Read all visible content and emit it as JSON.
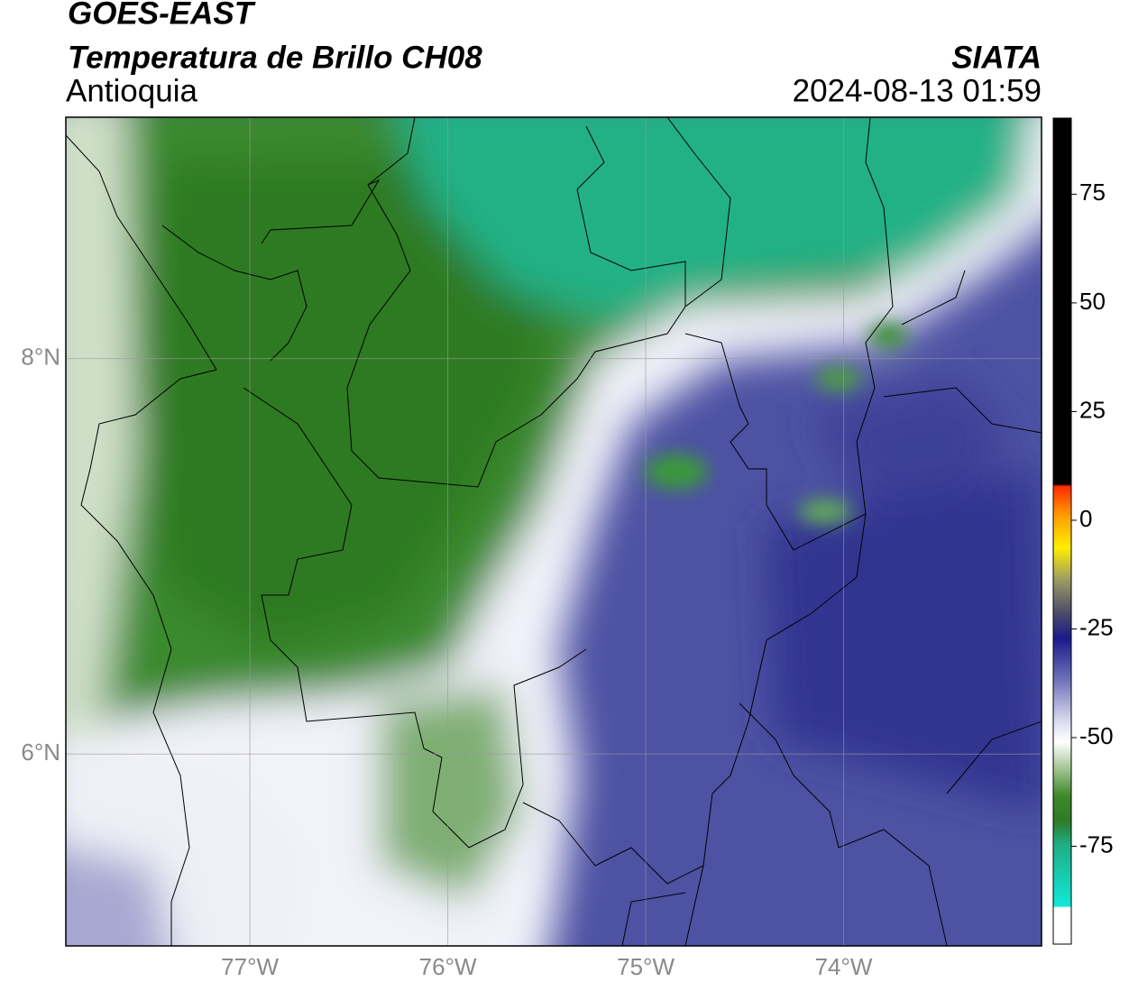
{
  "header": {
    "title": "GOES-EAST",
    "subtitle": "Temperatura de Brillo CH08",
    "region": "Antioquia",
    "source": "SIATA",
    "datetime": "2024-08-13 01:59"
  },
  "map": {
    "lon_range": [
      -77.93,
      -73.0
    ],
    "lat_range": [
      5.03,
      9.22
    ],
    "lon_ticks": [
      {
        "value": -77,
        "label": "77°W"
      },
      {
        "value": -76,
        "label": "76°W"
      },
      {
        "value": -75,
        "label": "75°W"
      },
      {
        "value": -74,
        "label": "74°W"
      }
    ],
    "lat_ticks": [
      {
        "value": 8,
        "label": "8°N"
      },
      {
        "value": 6,
        "label": "6°N"
      }
    ],
    "grid": true
  },
  "colorbar": {
    "range": [
      -97.5,
      92.5
    ],
    "ticks": [
      75,
      50,
      25,
      0,
      -25,
      -50,
      -75
    ]
  }
}
